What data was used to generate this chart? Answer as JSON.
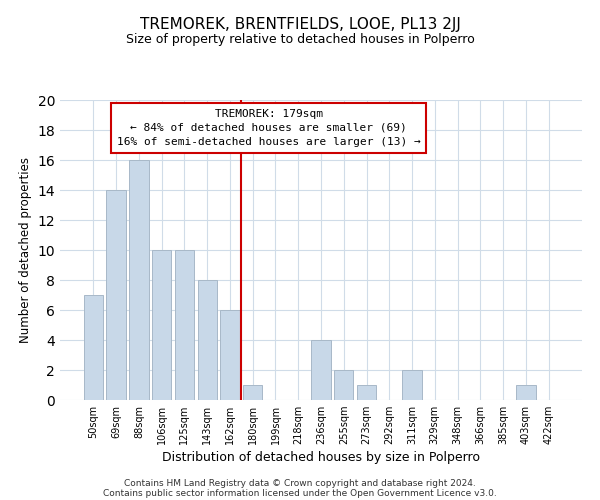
{
  "title": "TREMOREK, BRENTFIELDS, LOOE, PL13 2JJ",
  "subtitle": "Size of property relative to detached houses in Polperro",
  "xlabel": "Distribution of detached houses by size in Polperro",
  "ylabel": "Number of detached properties",
  "footer_line1": "Contains HM Land Registry data © Crown copyright and database right 2024.",
  "footer_line2": "Contains public sector information licensed under the Open Government Licence v3.0.",
  "bin_labels": [
    "50sqm",
    "69sqm",
    "88sqm",
    "106sqm",
    "125sqm",
    "143sqm",
    "162sqm",
    "180sqm",
    "199sqm",
    "218sqm",
    "236sqm",
    "255sqm",
    "273sqm",
    "292sqm",
    "311sqm",
    "329sqm",
    "348sqm",
    "366sqm",
    "385sqm",
    "403sqm",
    "422sqm"
  ],
  "bar_heights": [
    7,
    14,
    16,
    10,
    10,
    8,
    6,
    1,
    0,
    0,
    4,
    2,
    1,
    0,
    2,
    0,
    0,
    0,
    0,
    1,
    0
  ],
  "bar_color": "#c8d8e8",
  "bar_edge_color": "#a8b8c8",
  "annotation_title": "TREMOREK: 179sqm",
  "annotation_line1": "← 84% of detached houses are smaller (69)",
  "annotation_line2": "16% of semi-detached houses are larger (13) →",
  "vline_x_index": 7,
  "vline_color": "#cc0000",
  "ylim": [
    0,
    20
  ],
  "yticks": [
    0,
    2,
    4,
    6,
    8,
    10,
    12,
    14,
    16,
    18,
    20
  ],
  "bar_color_highlight": "#b0c8e0"
}
